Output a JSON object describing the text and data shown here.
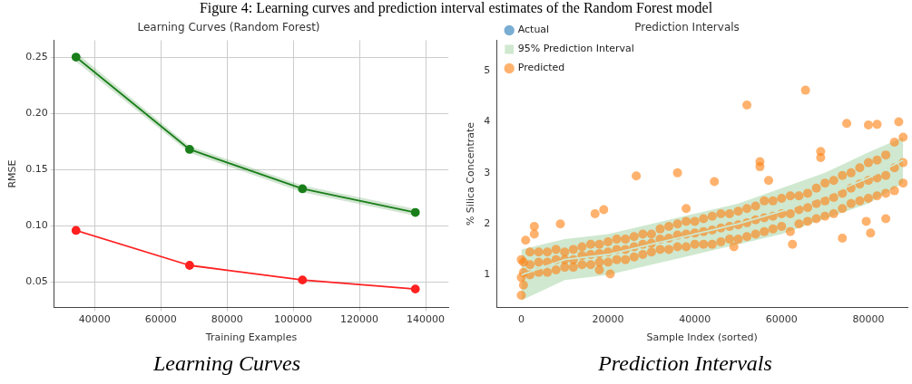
{
  "chart_data": [
    {
      "type": "line",
      "title": "Learning Curves (Random Forest)",
      "xlabel": "Training Examples",
      "ylabel": "RMSE",
      "annotations": [
        "Figure 4: Learning curves and prediction interval estimates of the Random Forest model",
        "Learning Curves"
      ],
      "xlim": [
        27800,
        146900
      ],
      "xticks": [
        40000,
        60000,
        80000,
        100000,
        120000,
        140000
      ],
      "ylim": [
        0.0275,
        0.265
      ],
      "yticks": [
        {
          "value": 0.05,
          "label": "0.05"
        },
        {
          "value": 0.1,
          "label": "0.10"
        },
        0.15,
        {
          "value": 0.2,
          "label": "0.20"
        },
        0.25
      ],
      "grid": true,
      "marker": "circle",
      "line_style": "solid",
      "series": [
        {
          "color": "#ff2020",
          "x": [
            34400,
            68700,
            102800,
            136900
          ],
          "values": [
            0.096,
            0.065,
            0.052,
            0.044
          ]
        },
        {
          "color": "#1a7f1a",
          "x": [
            34400,
            68700,
            102800,
            136900
          ],
          "values": [
            0.25,
            0.168,
            0.133,
            0.112
          ],
          "lower": [
            0.246,
            0.165,
            0.13,
            0.109
          ],
          "upper": [
            0.254,
            0.171,
            0.136,
            0.115
          ]
        }
      ]
    },
    {
      "type": "scatter",
      "title": "Prediction Intervals",
      "xlabel": "Sample Index (sorted)",
      "ylabel": "% Silica Concentrate",
      "annotations": [
        "Prediction Intervals"
      ],
      "xlim": [
        -5700,
        89000
      ],
      "xticks": [
        0,
        20000,
        40000,
        60000,
        80000
      ],
      "ylim": [
        0.36,
        5.6
      ],
      "yticks": [
        1,
        2,
        3,
        4,
        5
      ],
      "grid": false,
      "legend": "top left",
      "marker": "circle",
      "series": [
        {
          "name": "Actual",
          "color": "#1f77b4"
        },
        {
          "name": "95% Prediction Interval",
          "type": "line",
          "marker": "none",
          "color": "#cfe8cf",
          "x": [
            0,
            10000,
            20000,
            30000,
            40000,
            50000,
            60000,
            70000,
            80000,
            88000
          ],
          "values": [
            1.0,
            1.3,
            1.4,
            1.6,
            1.8,
            2.0,
            2.25,
            2.55,
            2.9,
            3.25
          ],
          "lower": [
            0.5,
            0.9,
            1.0,
            1.2,
            1.4,
            1.6,
            1.8,
            2.1,
            2.4,
            2.8
          ],
          "upper": [
            1.5,
            1.7,
            1.8,
            2.0,
            2.2,
            2.4,
            2.7,
            3.0,
            3.4,
            3.7
          ]
        },
        {
          "name": "Predicted",
          "color": "#ff7f0e",
          "x": [
            0,
            0,
            0,
            500,
            500,
            500,
            2000,
            2000,
            2000,
            4000,
            4000,
            4000,
            6000,
            6000,
            6000,
            8000,
            8000,
            8000,
            10000,
            10000,
            10000,
            12000,
            12000,
            12000,
            14000,
            14000,
            14000,
            16000,
            16000,
            16000,
            18000,
            18000,
            18000,
            20000,
            20000,
            20000,
            22000,
            22000,
            22000,
            24000,
            24000,
            24000,
            26000,
            26000,
            26000,
            28000,
            28000,
            28000,
            30000,
            30000,
            30000,
            32000,
            32000,
            32000,
            34000,
            34000,
            34000,
            36000,
            36000,
            36000,
            38000,
            38000,
            38000,
            40000,
            40000,
            40000,
            42000,
            42000,
            42000,
            44000,
            44000,
            44000,
            46000,
            46000,
            46000,
            48000,
            48000,
            48000,
            50000,
            50000,
            50000,
            52000,
            52000,
            52000,
            54000,
            54000,
            54000,
            56000,
            56000,
            56000,
            58000,
            58000,
            58000,
            60000,
            60000,
            60000,
            62000,
            62000,
            62000,
            64000,
            64000,
            64000,
            66000,
            66000,
            66000,
            68000,
            68000,
            68000,
            70000,
            70000,
            70000,
            72000,
            72000,
            72000,
            74000,
            74000,
            74000,
            76000,
            76000,
            76000,
            78000,
            78000,
            78000,
            80000,
            80000,
            80000,
            82000,
            82000,
            82000,
            84000,
            84000,
            84000,
            86000,
            86000,
            86000,
            88000,
            88000,
            88000,
            52000,
            65500,
            26500,
            36000,
            75000,
            80000,
            82000,
            87000,
            55000,
            55000,
            69000,
            69000,
            44500,
            19000,
            17000,
            3000,
            9000,
            1000,
            20500,
            18000,
            57000,
            74000,
            80500,
            84000,
            79500,
            62500,
            49000,
            38000,
            3000
          ],
          "values": [
            0.6,
            0.95,
            1.3,
            0.8,
            1.05,
            1.25,
            1.0,
            1.2,
            1.45,
            1.05,
            1.25,
            1.45,
            1.05,
            1.25,
            1.45,
            1.1,
            1.3,
            1.5,
            1.15,
            1.3,
            1.45,
            1.15,
            1.3,
            1.5,
            1.2,
            1.38,
            1.55,
            1.2,
            1.4,
            1.6,
            1.25,
            1.42,
            1.6,
            1.25,
            1.45,
            1.65,
            1.3,
            1.5,
            1.7,
            1.3,
            1.5,
            1.7,
            1.35,
            1.55,
            1.75,
            1.4,
            1.6,
            1.8,
            1.45,
            1.62,
            1.8,
            1.5,
            1.7,
            1.9,
            1.5,
            1.72,
            1.95,
            1.55,
            1.78,
            2.0,
            1.55,
            1.8,
            2.05,
            1.6,
            1.82,
            2.05,
            1.6,
            1.85,
            2.1,
            1.6,
            1.88,
            2.15,
            1.65,
            1.92,
            2.2,
            1.7,
            1.95,
            2.2,
            1.7,
            1.98,
            2.25,
            1.75,
            2.02,
            2.3,
            1.8,
            2.08,
            2.35,
            1.85,
            2.12,
            2.45,
            1.9,
            2.15,
            2.45,
            1.95,
            2.2,
            2.5,
            1.85,
            2.2,
            2.55,
            2.0,
            2.28,
            2.55,
            2.05,
            2.32,
            2.6,
            2.1,
            2.4,
            2.7,
            2.15,
            2.45,
            2.8,
            2.2,
            2.52,
            2.85,
            2.3,
            2.6,
            2.95,
            2.4,
            2.7,
            3.0,
            2.45,
            2.78,
            3.1,
            2.5,
            2.85,
            3.2,
            2.55,
            2.9,
            3.25,
            2.6,
            2.95,
            3.35,
            2.65,
            3.1,
            3.6,
            2.8,
            3.2,
            3.7,
            4.33,
            4.62,
            2.94,
            3.0,
            3.97,
            3.94,
            3.95,
            4.0,
            3.22,
            3.12,
            3.42,
            3.3,
            2.83,
            2.28,
            2.2,
            1.95,
            2.0,
            1.68,
            1.02,
            1.1,
            2.85,
            1.72,
            1.82,
            2.1,
            2.05,
            1.6,
            1.55,
            2.3,
            1.8
          ]
        }
      ]
    }
  ]
}
